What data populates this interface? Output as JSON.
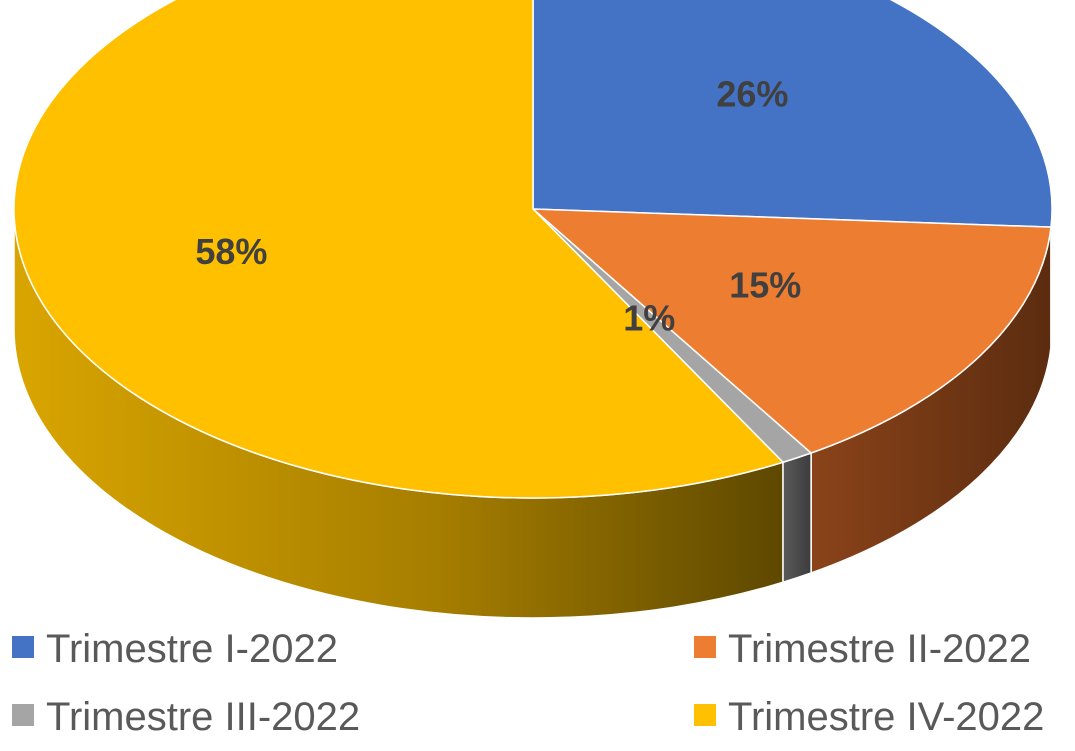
{
  "chart_data": {
    "type": "pie",
    "variant": "3d",
    "title": "",
    "series": [
      {
        "labels": [
          "Trimestre I-2022",
          "Trimestre II-2022",
          "Trimestre III-2022",
          "Trimestre IV-2022"
        ],
        "values": [
          26,
          15,
          1,
          58
        ],
        "value_labels": [
          "26%",
          "15%",
          "1%",
          "58%"
        ],
        "colors": [
          "#4472C4",
          "#ED7D31",
          "#A5A5A5",
          "#FFC000"
        ]
      }
    ],
    "legend": {
      "position": "bottom",
      "entries": [
        "Trimestre I-2022",
        "Trimestre II-2022",
        "Trimestre III-2022",
        "Trimestre IV-2022"
      ]
    },
    "data_labels": true,
    "grid": false
  }
}
